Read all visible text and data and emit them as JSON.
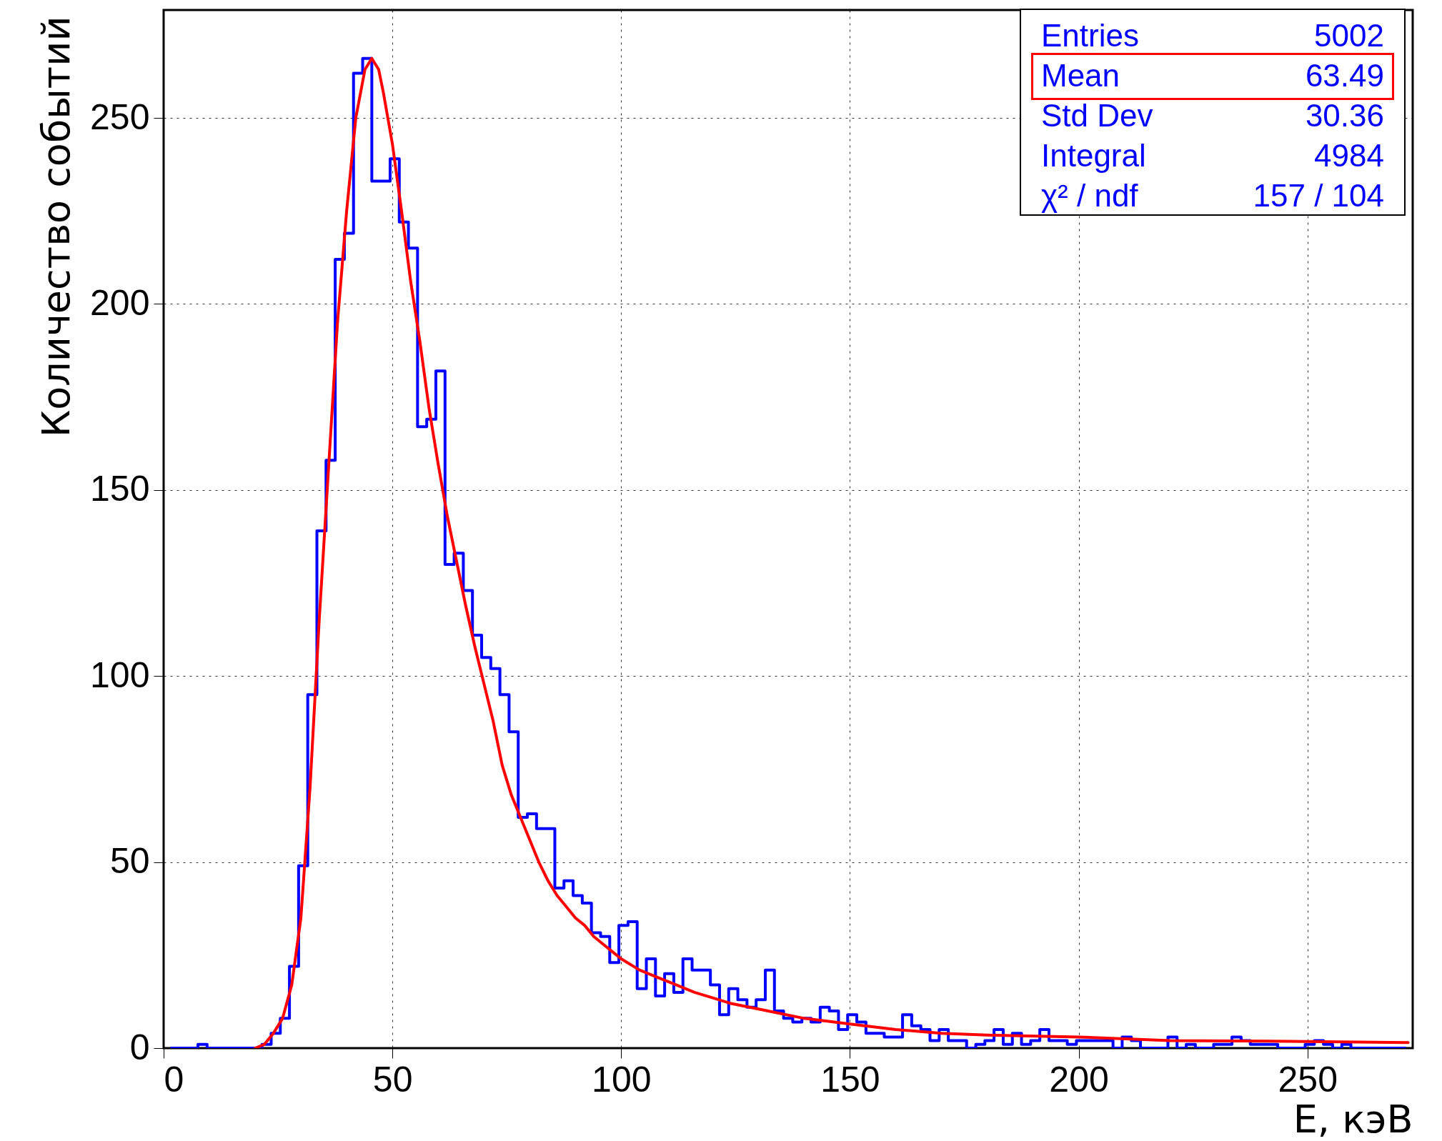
{
  "chart_data": {
    "type": "histogram",
    "xlabel": "E, кэВ",
    "ylabel": "Количество событий",
    "bins": [
      1.5,
      3.5,
      5.5,
      7.5,
      9.5,
      11.5,
      13.5,
      15.5,
      17.5,
      19.5,
      21.5,
      23.5,
      25.5,
      27.5,
      29.5,
      31.5,
      33.5,
      35.5,
      37.5,
      39.5,
      41.5,
      43.5,
      45.5,
      47.5,
      49.5,
      51.5,
      53.5,
      55.5,
      57.5,
      59.5,
      61.5,
      63.5,
      65.5,
      67.5,
      69.5,
      71.5,
      73.5,
      75.5,
      77.5,
      79.5,
      81.5,
      83.5,
      85.5,
      87.5,
      89.5,
      91.5,
      93.5,
      95.5,
      97.5,
      99.5,
      101.5,
      103.5,
      105.5,
      107.5,
      109.5,
      111.5,
      113.5,
      115.5,
      117.5,
      119.5,
      121.5,
      123.5,
      125.5,
      127.5,
      129.5,
      131.5,
      133.5,
      135.5,
      137.5,
      139.5,
      141.5,
      143.5,
      145.5,
      147.5,
      149.5,
      151.5,
      153.5,
      155.5,
      157.5,
      159.5,
      161.5,
      163.5,
      165.5,
      167.5,
      169.5,
      171.5,
      173.5,
      175.5,
      177.5,
      179.5,
      181.5,
      183.5,
      185.5,
      187.5,
      189.5,
      191.5,
      193.5,
      195.5,
      197.5,
      199.5,
      201.5,
      203.5,
      205.5,
      207.5,
      209.5,
      211.5,
      213.5,
      215.5,
      217.5,
      219.5,
      221.5,
      223.5,
      225.5,
      227.5,
      229.5,
      231.5,
      233.5,
      235.5,
      237.5,
      239.5,
      241.5,
      243.5,
      245.5,
      247.5,
      249.5,
      251.5,
      253.5,
      255.5,
      257.5,
      259.5,
      261.5,
      263.5,
      265.5,
      267.5,
      269.5,
      271.5
    ],
    "series": [
      {
        "color": "#0000ff",
        "values": [
          0,
          0,
          0,
          1,
          0,
          0,
          0,
          0,
          0,
          0,
          1,
          4,
          8,
          22,
          49,
          95,
          139,
          158,
          212,
          219,
          262,
          266,
          233,
          233,
          239,
          222,
          215,
          167,
          169,
          182,
          130,
          133,
          123,
          111,
          105,
          102,
          95,
          85,
          62,
          63,
          59,
          59,
          43,
          45,
          41,
          39,
          31,
          30,
          23,
          33,
          34,
          16,
          24,
          14,
          20,
          15,
          24,
          21,
          21,
          17,
          9,
          16,
          13,
          11,
          13,
          21,
          10,
          8,
          7,
          8,
          7,
          11,
          10,
          5,
          9,
          7,
          4,
          4,
          3,
          3,
          9,
          6,
          5,
          2,
          5,
          2,
          2,
          0,
          1,
          2,
          5,
          1,
          4,
          1,
          2,
          5,
          2,
          2,
          1,
          2,
          2,
          2,
          2,
          0,
          3,
          2,
          0,
          0,
          0,
          3,
          0,
          1,
          0,
          0,
          1,
          1,
          3,
          2,
          1,
          1,
          1,
          0,
          0,
          0,
          1,
          2,
          1,
          0,
          1,
          0,
          0,
          0,
          0,
          0,
          0
        ]
      },
      {
        "type": "line",
        "color": "#ff0000",
        "x": [
          20,
          22,
          24,
          26,
          28,
          30,
          32,
          34,
          36,
          38,
          40,
          42,
          44,
          45.5,
          47,
          48,
          50,
          52,
          54,
          56,
          58,
          60,
          62,
          64,
          66,
          68,
          70,
          72,
          74,
          76,
          78,
          80,
          82,
          84,
          86,
          88,
          90,
          92,
          94,
          96,
          98,
          100,
          104,
          108,
          112,
          116,
          120,
          124,
          130,
          140,
          150,
          160,
          170,
          180,
          200,
          220,
          250,
          272
        ],
        "values": [
          0,
          1,
          4,
          8,
          17,
          35,
          70,
          115,
          155,
          195,
          225,
          250,
          263,
          266,
          263,
          257,
          243,
          225,
          206,
          190,
          172,
          157,
          143,
          131,
          119,
          108,
          98,
          88,
          76,
          68,
          62,
          56,
          50,
          45,
          41,
          38,
          35,
          33,
          30,
          28,
          26,
          24,
          21,
          19,
          17,
          15,
          13.5,
          12,
          10.5,
          8,
          6.5,
          5,
          4,
          3.5,
          3,
          2,
          1.8,
          1.5
        ]
      }
    ],
    "xlim": [
      0,
      273
    ],
    "xticks": [
      0,
      50,
      100,
      150,
      200,
      250
    ],
    "ylim": [
      0,
      279
    ],
    "yticks": [
      0,
      50,
      100,
      150,
      200,
      250
    ],
    "grid": true,
    "line_style": "solid",
    "annotations": [
      "Entries",
      "5002",
      "Mean",
      "63.49",
      "Std Dev",
      "30.36",
      "Integral",
      "4984",
      "χ² / ndf",
      "157 / 104"
    ]
  }
}
